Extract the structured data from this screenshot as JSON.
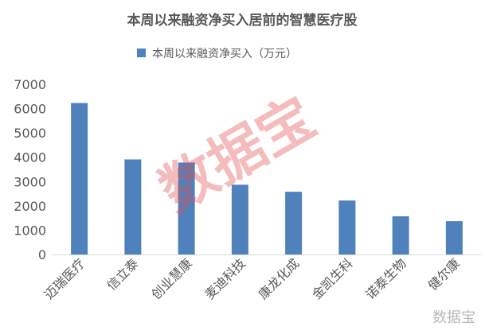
{
  "chart_data": {
    "type": "bar",
    "title": "本周以来融资净买入居前的智慧医疗股",
    "categories": [
      "迈瑞医疗",
      "信立泰",
      "创业慧康",
      "麦迪科技",
      "康龙化成",
      "金凯生科",
      "诺泰生物",
      "健尔康"
    ],
    "series": [
      {
        "name": "本周以来融资净买入（万元）",
        "values": [
          6230,
          3910,
          3780,
          2870,
          2580,
          2220,
          1570,
          1370
        ]
      }
    ],
    "ylim": [
      0,
      7000
    ],
    "yticks": [
      0,
      1000,
      2000,
      3000,
      4000,
      5000,
      6000,
      7000
    ],
    "legend_position": "top",
    "grid": false,
    "colors": {
      "bar": "#4f81bd",
      "axis": "#d9d9d9",
      "text": "#595959"
    }
  },
  "watermark": {
    "main": "数据宝",
    "corner": "数据宝"
  }
}
